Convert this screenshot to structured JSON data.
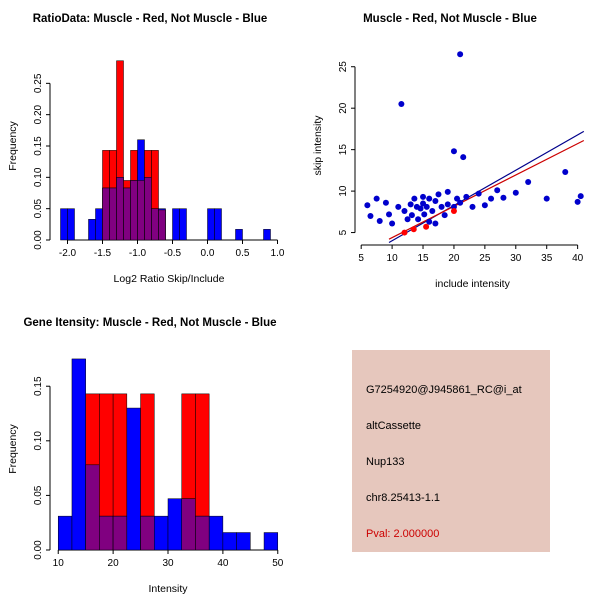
{
  "figure": {
    "background": "#ffffff"
  },
  "chart_data": [
    {
      "type": "bar",
      "subtype": "histogram-overlay",
      "title": "RatioData: Muscle - Red, Not Muscle - Blue",
      "xlabel": "Log2 Ratio Skip/Include",
      "ylabel": "Frequency",
      "xticks": [
        "-2.0",
        "-1.5",
        "-1.0",
        "-0.5",
        "0.0",
        "0.5",
        "1.0"
      ],
      "yticks": [
        "0.00",
        "0.05",
        "0.10",
        "0.15",
        "0.20",
        "0.25"
      ],
      "xlim": [
        -2.25,
        1.15
      ],
      "ylim": [
        0,
        0.3
      ],
      "bin_width": 0.1,
      "colors": {
        "muscle": "#ff0000",
        "not_muscle": "#0000ff",
        "overlap": "#800080"
      },
      "bins": [
        {
          "x0": -2.1,
          "not_muscle": 0.05
        },
        {
          "x0": -2.0,
          "not_muscle": 0.05
        },
        {
          "x0": -1.7,
          "not_muscle": 0.033
        },
        {
          "x0": -1.6,
          "not_muscle": 0.05
        },
        {
          "x0": -1.5,
          "muscle": 0.143,
          "not_muscle": 0.083
        },
        {
          "x0": -1.4,
          "muscle": 0.143,
          "not_muscle": 0.083
        },
        {
          "x0": -1.3,
          "muscle": 0.286,
          "not_muscle": 0.1
        },
        {
          "x0": -1.2,
          "muscle": 0.095,
          "not_muscle": 0.083
        },
        {
          "x0": -1.1,
          "muscle": 0.143,
          "not_muscle": 0.095
        },
        {
          "x0": -1.0,
          "muscle": 0.095,
          "not_muscle": 0.16
        },
        {
          "x0": -0.9,
          "muscle": 0.143,
          "not_muscle": 0.1
        },
        {
          "x0": -0.8,
          "muscle": 0.143,
          "not_muscle": 0.05
        },
        {
          "x0": -0.7,
          "muscle": 0.048,
          "not_muscle": 0.05
        },
        {
          "x0": -0.5,
          "not_muscle": 0.05
        },
        {
          "x0": -0.4,
          "not_muscle": 0.05
        },
        {
          "x0": 0.0,
          "not_muscle": 0.05
        },
        {
          "x0": 0.1,
          "not_muscle": 0.05
        },
        {
          "x0": 0.4,
          "not_muscle": 0.017
        },
        {
          "x0": 0.8,
          "not_muscle": 0.017
        }
      ]
    },
    {
      "type": "scatter",
      "title": "Muscle - Red, Not Muscle - Blue",
      "xlabel": "include intensity",
      "ylabel": "skip intensity",
      "xticks": [
        "5",
        "10",
        "15",
        "20",
        "25",
        "30",
        "35",
        "40"
      ],
      "yticks": [
        "5",
        "10",
        "15",
        "20",
        "25"
      ],
      "xlim": [
        4,
        42
      ],
      "ylim": [
        3.5,
        27.5
      ],
      "series": [
        {
          "name": "Not Muscle",
          "color": "#0000cc",
          "points": [
            [
              6,
              8.3
            ],
            [
              6.5,
              7
            ],
            [
              7.5,
              9.1
            ],
            [
              8,
              6.4
            ],
            [
              9,
              8.6
            ],
            [
              9.5,
              7.2
            ],
            [
              10,
              6.1
            ],
            [
              11,
              8.1
            ],
            [
              11.5,
              20.5
            ],
            [
              12,
              7.6
            ],
            [
              12.5,
              6.6
            ],
            [
              13,
              8.4
            ],
            [
              13.2,
              7.1
            ],
            [
              13.6,
              9.1
            ],
            [
              14,
              8.1
            ],
            [
              14.2,
              6.6
            ],
            [
              14.6,
              7.9
            ],
            [
              15,
              9.3
            ],
            [
              15,
              8.5
            ],
            [
              15.2,
              7.2
            ],
            [
              15.6,
              8.1
            ],
            [
              16,
              6.3
            ],
            [
              16,
              9.1
            ],
            [
              16.5,
              7.6
            ],
            [
              17,
              8.8
            ],
            [
              17,
              6.1
            ],
            [
              17.5,
              9.6
            ],
            [
              18,
              8.1
            ],
            [
              18.5,
              7.1
            ],
            [
              19,
              9.9
            ],
            [
              19,
              8.4
            ],
            [
              20,
              14.8
            ],
            [
              20,
              8.1
            ],
            [
              20.5,
              9.1
            ],
            [
              21,
              26.5
            ],
            [
              21,
              8.6
            ],
            [
              21.5,
              14.1
            ],
            [
              22,
              9.3
            ],
            [
              23,
              8.1
            ],
            [
              24,
              9.7
            ],
            [
              25,
              8.3
            ],
            [
              26,
              9.1
            ],
            [
              27,
              10.1
            ],
            [
              28,
              9.2
            ],
            [
              30,
              9.8
            ],
            [
              32,
              11.1
            ],
            [
              35,
              9.1
            ],
            [
              38,
              12.3
            ],
            [
              40,
              8.7
            ],
            [
              40.5,
              9.4
            ]
          ]
        },
        {
          "name": "Muscle",
          "color": "#ff0000",
          "points": [
            [
              12,
              5.0
            ],
            [
              13.5,
              5.4
            ],
            [
              15.5,
              5.7
            ],
            [
              20,
              7.6
            ]
          ]
        }
      ],
      "fit_lines": [
        {
          "color": "#00008b",
          "x1": 9.5,
          "y1": 3.8,
          "x2": 41,
          "y2": 17.2
        },
        {
          "color": "#cc0000",
          "x1": 9.5,
          "y1": 4.2,
          "x2": 41,
          "y2": 16.1
        }
      ]
    },
    {
      "type": "bar",
      "subtype": "histogram-overlay",
      "title": "Gene Itensity: Muscle - Red, Not Muscle - Blue",
      "xlabel": "Intensity",
      "ylabel": "Frequency",
      "xticks": [
        "10",
        "20",
        "30",
        "40",
        "50"
      ],
      "yticks": [
        "0.00",
        "0.05",
        "0.10",
        "0.15"
      ],
      "xlim": [
        8.5,
        51.5
      ],
      "ylim": [
        0,
        0.185
      ],
      "bin_width": 2.5,
      "colors": {
        "muscle": "#ff0000",
        "not_muscle": "#0000ff",
        "overlap": "#800080"
      },
      "bins": [
        {
          "x0": 10,
          "not_muscle": 0.031
        },
        {
          "x0": 12.5,
          "not_muscle": 0.175
        },
        {
          "x0": 15,
          "muscle": 0.143,
          "not_muscle": 0.078
        },
        {
          "x0": 17.5,
          "muscle": 0.143,
          "not_muscle": 0.031
        },
        {
          "x0": 20,
          "muscle": 0.143,
          "not_muscle": 0.031
        },
        {
          "x0": 22.5,
          "not_muscle": 0.13
        },
        {
          "x0": 25,
          "muscle": 0.143,
          "not_muscle": 0.031
        },
        {
          "x0": 27.5,
          "not_muscle": 0.031
        },
        {
          "x0": 30,
          "not_muscle": 0.047
        },
        {
          "x0": 32.5,
          "muscle": 0.143,
          "not_muscle": 0.047
        },
        {
          "x0": 35,
          "muscle": 0.143,
          "not_muscle": 0.031
        },
        {
          "x0": 37.5,
          "not_muscle": 0.031
        },
        {
          "x0": 40,
          "not_muscle": 0.016
        },
        {
          "x0": 42.5,
          "not_muscle": 0.016
        },
        {
          "x0": 47.5,
          "not_muscle": 0.016
        }
      ]
    }
  ],
  "info_panel": {
    "probe_id": "G7254920@J945861_RC@i_at",
    "event_type": "altCassette",
    "gene_symbol": "Nup133",
    "location": "chr8.25413-1.1",
    "pval": "Pval: 2.000000",
    "background": "#e6c7bd",
    "pval_color": "#cc0000"
  }
}
